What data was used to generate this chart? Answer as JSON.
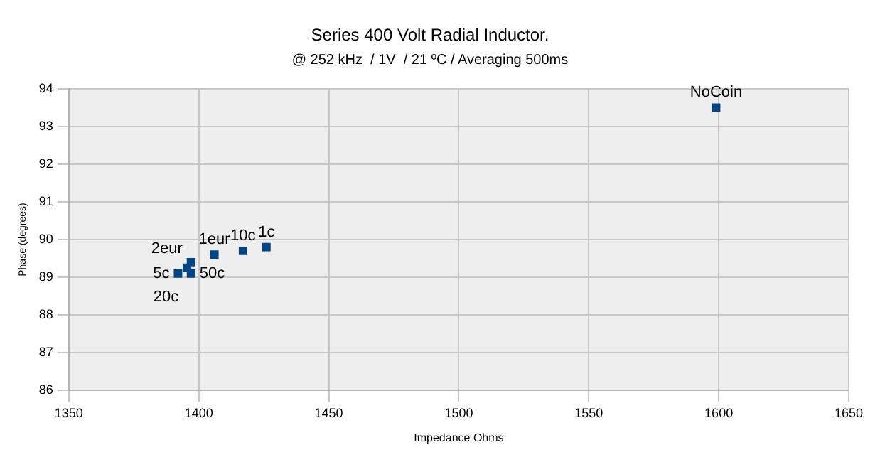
{
  "chart_data": {
    "type": "scatter",
    "title": "Series 400 Volt Radial Inductor.",
    "subtitle": "@ 252 kHz  / 1V  / 21 ºC / Averaging 500ms",
    "xlabel": "Impedance Ohms",
    "ylabel": "Phase (degrees)",
    "x": [
      1599,
      1426,
      1417,
      1406,
      1397,
      1395.5,
      1392,
      1397
    ],
    "values": [
      93.5,
      89.8,
      89.7,
      89.6,
      89.4,
      89.25,
      89.1,
      89.1
    ],
    "annotations": [
      {
        "text": "NoCoin",
        "x": 1599,
        "y": 93.5
      },
      {
        "text": "1c",
        "x": 1426,
        "y": 89.8
      },
      {
        "text": "10c",
        "x": 1417,
        "y": 89.7
      },
      {
        "text": "1eur",
        "x": 1406,
        "y": 89.6
      },
      {
        "text": "2eur",
        "x": 1397,
        "y": 89.4
      },
      {
        "text": "20c",
        "x": 1395.5,
        "y": 89.25
      },
      {
        "text": "5c",
        "x": 1392,
        "y": 89.1
      },
      {
        "text": "50c",
        "x": 1397,
        "y": 89.1
      }
    ],
    "color": "#004586",
    "marker": "square",
    "xlim": [
      1350,
      1650
    ],
    "xticks": [
      1350,
      1400,
      1450,
      1500,
      1550,
      1600,
      1650
    ],
    "ylim": [
      86,
      94
    ],
    "yticks": [
      86,
      87,
      88,
      89,
      90,
      91,
      92,
      93,
      94
    ],
    "grid": true,
    "legend": false
  }
}
